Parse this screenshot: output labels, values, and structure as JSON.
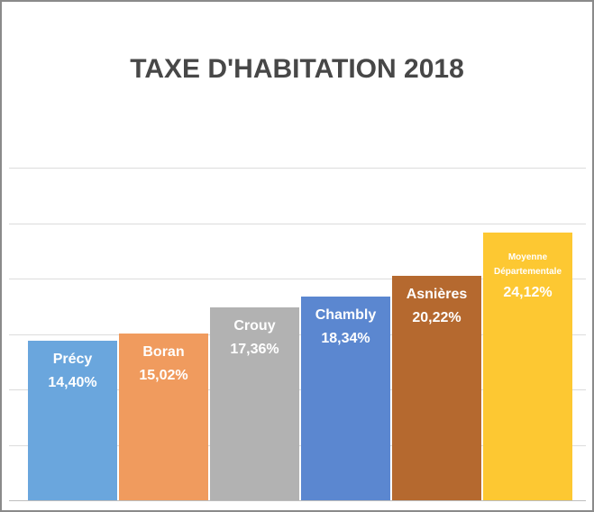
{
  "chart_data": {
    "type": "bar",
    "title": "TAXE D'HABITATION 2018",
    "categories": [
      "Précy",
      "Boran",
      "Crouy",
      "Chambly",
      "Asnières",
      "Moyenne Départementale"
    ],
    "values": [
      14.4,
      15.02,
      17.36,
      18.34,
      20.22,
      24.12
    ],
    "value_labels": [
      "14,40%",
      "15,02%",
      "17,36%",
      "18,34%",
      "20,22%",
      "24,12%"
    ],
    "colors": [
      "#6aa6dd",
      "#f09b5e",
      "#b2b2b2",
      "#5b87d0",
      "#b5692f",
      "#fdc832"
    ],
    "ylim": [
      0,
      30
    ],
    "yticks": [
      0,
      5,
      10,
      15,
      20,
      25,
      30
    ],
    "grid": true
  }
}
